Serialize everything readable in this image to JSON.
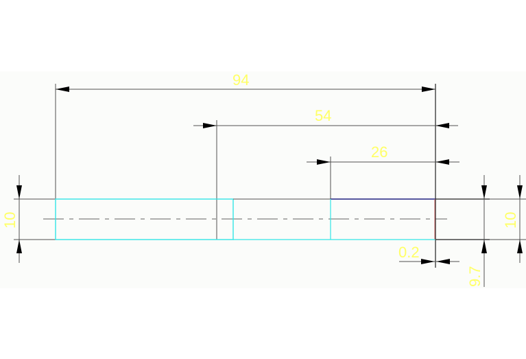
{
  "drawing": {
    "dimensions": {
      "overall_length": "94",
      "middle_length": "54",
      "right_length": "26",
      "left_diameter": "10",
      "right_diameter": "10",
      "right_offset": "9.7",
      "step_offset": "0.2"
    },
    "colors": {
      "background": "#fbfcfa",
      "dimension_text": "#ffff66",
      "shaft_outline": "#33e6e6",
      "shaft_top_right": "#202080",
      "dimension_lines": "#505050"
    }
  }
}
